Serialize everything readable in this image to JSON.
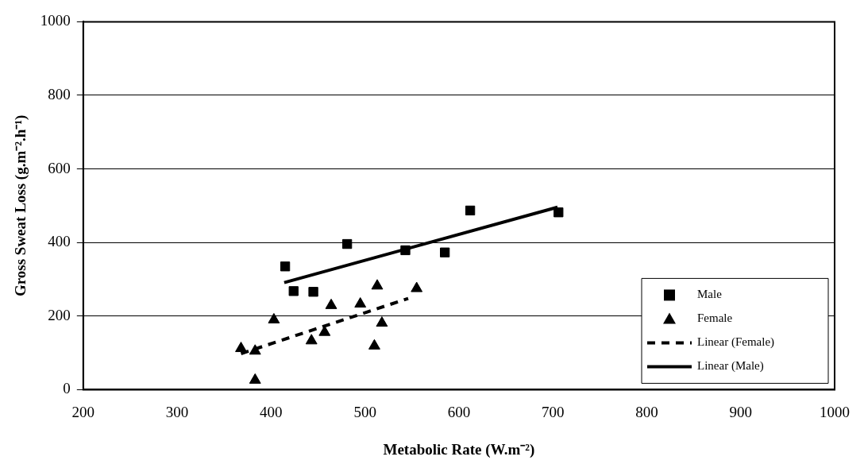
{
  "chart_data": {
    "type": "scatter",
    "xlabel": "Metabolic Rate (W.m⁻²)",
    "ylabel": "Gross Sweat Loss (g.m⁻².h⁻¹)",
    "xlim": [
      200,
      1000
    ],
    "xticks": [
      200,
      300,
      400,
      500,
      600,
      700,
      800,
      900,
      1000
    ],
    "ylim": [
      0,
      1000
    ],
    "yticks": [
      0,
      200,
      400,
      600,
      800,
      1000
    ],
    "grid": "y",
    "legend": "bottom right",
    "series": [
      {
        "name": "Male",
        "type": "scatter",
        "marker": "square",
        "color": "#000000",
        "x": [
          415,
          424,
          445,
          481,
          543,
          585,
          612,
          706
        ],
        "values": [
          335,
          268,
          266,
          396,
          379,
          373,
          487,
          482
        ]
      },
      {
        "name": "Female",
        "type": "scatter",
        "marker": "triangle",
        "color": "#000000",
        "x": [
          368,
          383,
          383,
          403,
          443,
          457,
          464,
          495,
          510,
          513,
          518,
          555
        ],
        "values": [
          112,
          105,
          26,
          190,
          133,
          156,
          229,
          233,
          119,
          282,
          181,
          275
        ]
      },
      {
        "name": "Linear (Female)",
        "type": "line",
        "line_style": "dashed",
        "color": "#000000",
        "x": [
          368,
          546
        ],
        "values": [
          98,
          248
        ]
      },
      {
        "name": "Linear (Male)",
        "type": "line",
        "line_style": "solid",
        "color": "#000000",
        "x": [
          414,
          705
        ],
        "values": [
          291,
          496
        ]
      }
    ]
  }
}
